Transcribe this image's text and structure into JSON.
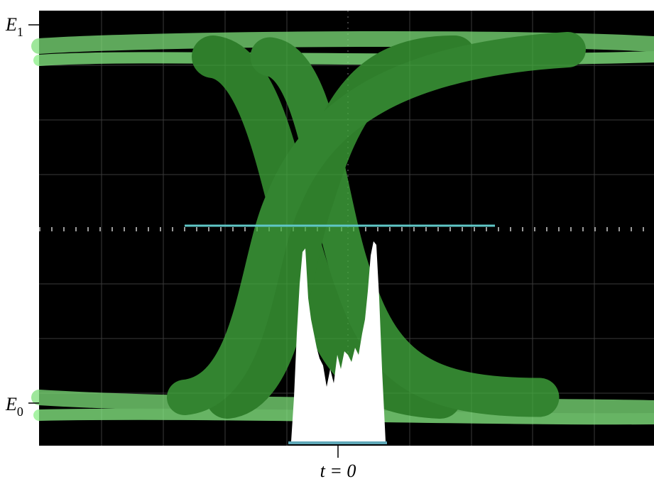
{
  "labels": {
    "e1": {
      "symbol": "E",
      "subscript": "1"
    },
    "e0": {
      "symbol": "E",
      "subscript": "0"
    },
    "t0": "t = 0"
  }
}
